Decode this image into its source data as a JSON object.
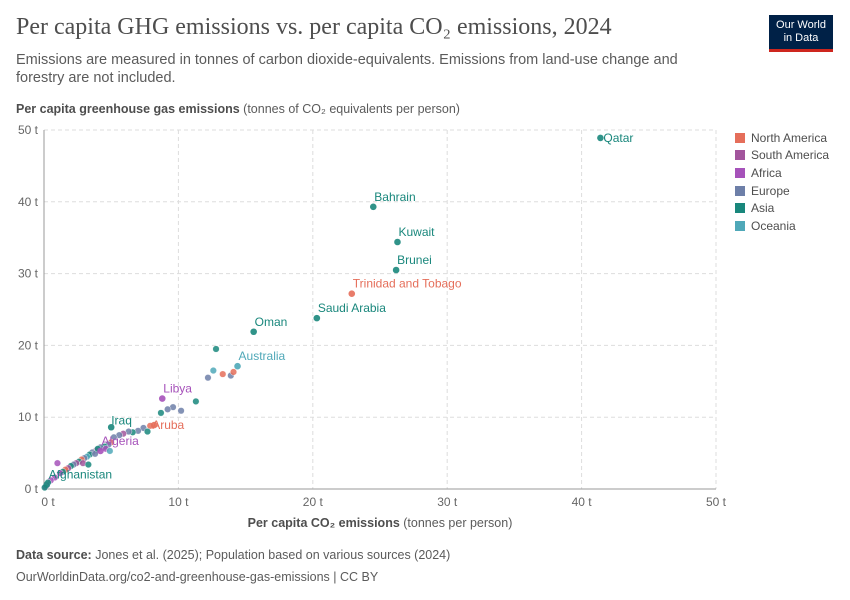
{
  "header": {
    "title": "Per capita GHG emissions vs. per capita CO₂ emissions, 2024",
    "subtitle": "Emissions are measured in tonnes of carbon dioxide-equivalents. Emissions from land-use change and forestry are not included.",
    "logo_line1": "Our World",
    "logo_line2": "in Data"
  },
  "footer": {
    "source_label": "Data source:",
    "source_text": "Jones et al. (2025); Population based on various sources (2024)",
    "url": "OurWorldinData.org/co2-and-greenhouse-gas-emissions | CC BY"
  },
  "colors": {
    "North America": "#e56e5a",
    "South America": "#a2559c",
    "Africa": "#a652ba",
    "Europe": "#6d7fa8",
    "Asia": "#19877c",
    "Oceania": "#4fa8b8"
  },
  "chart_data": {
    "type": "scatter",
    "title": "Per capita GHG emissions vs. per capita CO₂ emissions, 2024",
    "xlabel_bold": "Per capita CO₂ emissions",
    "xlabel_rest": " (tonnes per person)",
    "ylabel_bold": "Per capita greenhouse gas emissions",
    "ylabel_rest": " (tonnes of CO₂ equivalents per person)",
    "xlim": [
      0,
      50
    ],
    "ylim": [
      0,
      50
    ],
    "x_ticks": [
      "0 t",
      "10 t",
      "20 t",
      "30 t",
      "40 t",
      "50 t"
    ],
    "y_ticks": [
      "0 t",
      "10 t",
      "20 t",
      "30 t",
      "40 t",
      "50 t"
    ],
    "grid": true,
    "legend_position": "right",
    "legend": [
      "North America",
      "South America",
      "Africa",
      "Europe",
      "Asia",
      "Oceania"
    ],
    "labeled_points": [
      {
        "label": "Qatar",
        "region": "Asia",
        "x": 41.4,
        "y": 48.9
      },
      {
        "label": "Bahrain",
        "region": "Asia",
        "x": 24.5,
        "y": 39.3
      },
      {
        "label": "Kuwait",
        "region": "Asia",
        "x": 26.3,
        "y": 34.4
      },
      {
        "label": "Brunei",
        "region": "Asia",
        "x": 26.2,
        "y": 30.5
      },
      {
        "label": "Trinidad and Tobago",
        "region": "North America",
        "x": 22.9,
        "y": 27.2
      },
      {
        "label": "Saudi Arabia",
        "region": "Asia",
        "x": 20.3,
        "y": 23.8
      },
      {
        "label": "Oman",
        "region": "Asia",
        "x": 15.6,
        "y": 21.9
      },
      {
        "label": "Australia",
        "region": "Oceania",
        "x": 14.4,
        "y": 17.1
      },
      {
        "label": "Libya",
        "region": "Africa",
        "x": 8.8,
        "y": 12.6
      },
      {
        "label": "Iraq",
        "region": "Asia",
        "x": 5.0,
        "y": 8.6
      },
      {
        "label": "Aruba",
        "region": "North America",
        "x": 8.2,
        "y": 8.9
      },
      {
        "label": "Algeria",
        "region": "Africa",
        "x": 4.2,
        "y": 5.3
      },
      {
        "label": "Afghanistan",
        "region": "Asia",
        "x": 0.2,
        "y": 0.6
      }
    ],
    "points": [
      {
        "region": "Asia",
        "x": 12.8,
        "y": 19.5
      },
      {
        "region": "Europe",
        "x": 12.2,
        "y": 15.5
      },
      {
        "region": "Oceania",
        "x": 12.6,
        "y": 16.5
      },
      {
        "region": "North America",
        "x": 13.3,
        "y": 16.0
      },
      {
        "region": "Europe",
        "x": 13.9,
        "y": 15.8
      },
      {
        "region": "North America",
        "x": 14.1,
        "y": 16.3
      },
      {
        "region": "Asia",
        "x": 11.3,
        "y": 12.2
      },
      {
        "region": "Europe",
        "x": 10.2,
        "y": 10.9
      },
      {
        "region": "Europe",
        "x": 9.6,
        "y": 11.4
      },
      {
        "region": "Europe",
        "x": 9.2,
        "y": 11.1
      },
      {
        "region": "Asia",
        "x": 8.7,
        "y": 10.6
      },
      {
        "region": "North America",
        "x": 7.9,
        "y": 8.8
      },
      {
        "region": "Europe",
        "x": 7.4,
        "y": 8.5
      },
      {
        "region": "Europe",
        "x": 7.0,
        "y": 8.1
      },
      {
        "region": "Asia",
        "x": 6.6,
        "y": 7.9
      },
      {
        "region": "Europe",
        "x": 6.3,
        "y": 8.0
      },
      {
        "region": "South America",
        "x": 5.9,
        "y": 7.7
      },
      {
        "region": "Europe",
        "x": 5.6,
        "y": 7.5
      },
      {
        "region": "Asia",
        "x": 7.7,
        "y": 8.0
      },
      {
        "region": "Europe",
        "x": 5.2,
        "y": 7.2
      },
      {
        "region": "North America",
        "x": 5.0,
        "y": 6.5
      },
      {
        "region": "Europe",
        "x": 4.8,
        "y": 6.2
      },
      {
        "region": "Asia",
        "x": 4.5,
        "y": 5.9
      },
      {
        "region": "Europe",
        "x": 4.2,
        "y": 5.8
      },
      {
        "region": "South America",
        "x": 3.9,
        "y": 5.4
      },
      {
        "region": "Europe",
        "x": 3.6,
        "y": 5.1
      },
      {
        "region": "Asia",
        "x": 3.4,
        "y": 4.8
      },
      {
        "region": "Oceania",
        "x": 3.2,
        "y": 4.5
      },
      {
        "region": "Europe",
        "x": 3.0,
        "y": 4.3
      },
      {
        "region": "North America",
        "x": 2.8,
        "y": 4.1
      },
      {
        "region": "Asia",
        "x": 2.6,
        "y": 3.8
      },
      {
        "region": "South America",
        "x": 2.4,
        "y": 3.6
      },
      {
        "region": "Europe",
        "x": 2.2,
        "y": 3.4
      },
      {
        "region": "Africa",
        "x": 1.0,
        "y": 3.6
      },
      {
        "region": "Asia",
        "x": 2.0,
        "y": 3.2
      },
      {
        "region": "South America",
        "x": 1.8,
        "y": 2.9
      },
      {
        "region": "North America",
        "x": 1.6,
        "y": 2.7
      },
      {
        "region": "Asia",
        "x": 1.4,
        "y": 2.4
      },
      {
        "region": "Africa",
        "x": 1.2,
        "y": 2.2
      },
      {
        "region": "Europe",
        "x": 3.8,
        "y": 4.9
      },
      {
        "region": "Asia",
        "x": 4.0,
        "y": 5.6
      },
      {
        "region": "Africa",
        "x": 4.6,
        "y": 5.6
      },
      {
        "region": "Oceania",
        "x": 4.9,
        "y": 5.3
      },
      {
        "region": "South America",
        "x": 2.9,
        "y": 3.6
      },
      {
        "region": "Asia",
        "x": 3.3,
        "y": 3.4
      },
      {
        "region": "Africa",
        "x": 0.8,
        "y": 1.6
      },
      {
        "region": "Africa",
        "x": 0.5,
        "y": 1.2
      },
      {
        "region": "Asia",
        "x": 0.3,
        "y": 0.9
      },
      {
        "region": "Africa",
        "x": 0.2,
        "y": 0.5
      },
      {
        "region": "Africa",
        "x": 0.1,
        "y": 0.3
      },
      {
        "region": "Asia",
        "x": 0.05,
        "y": 0.2
      }
    ]
  }
}
